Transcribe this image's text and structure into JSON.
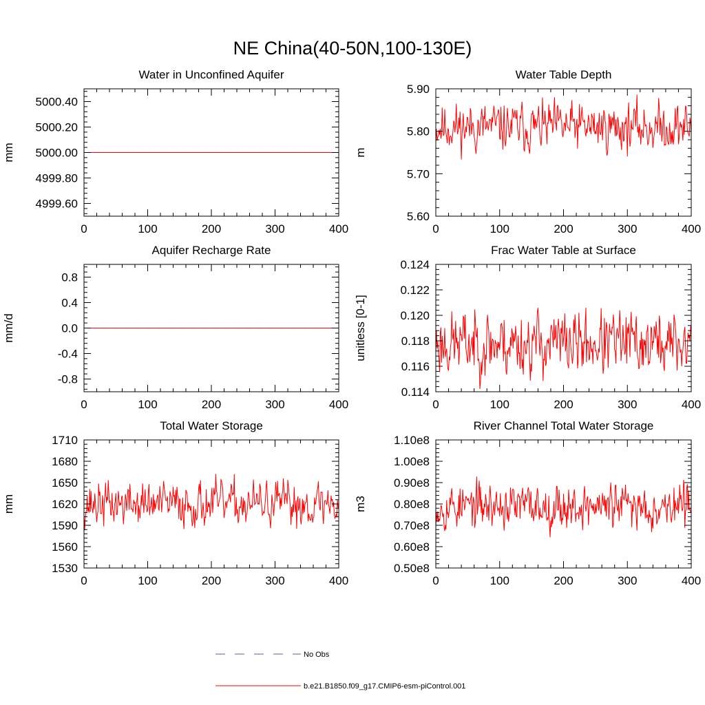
{
  "page_title": "NE China(40-50N,100-130E)",
  "colors": {
    "model": "#ff0000",
    "obs": "#5a5aa0"
  },
  "chart_data": [
    {
      "type": "line",
      "title": "Water in Unconfined Aquifer",
      "ylabel": "mm",
      "xlabel": "",
      "xlim": [
        0,
        400
      ],
      "ylim": [
        4999.5,
        5000.5
      ],
      "xticks": [
        "0",
        "100",
        "200",
        "300",
        "400"
      ],
      "yticks": [
        "4999.60",
        "4999.80",
        "5000.00",
        "5000.20",
        "5000.40"
      ],
      "yticks_values": [
        4999.6,
        4999.8,
        5000.0,
        5000.2,
        5000.4
      ],
      "series_kind": "constant",
      "series_value": 5000.0,
      "series_name": "b.e21.B1850.f09_g17.CMIP6-esm-piControl.001"
    },
    {
      "type": "line",
      "title": "Water Table Depth",
      "ylabel": "m",
      "xlabel": "",
      "xlim": [
        0,
        400
      ],
      "ylim": [
        5.6,
        5.9
      ],
      "xticks": [
        "0",
        "100",
        "200",
        "300",
        "400"
      ],
      "yticks": [
        "5.60",
        "5.70",
        "5.80",
        "5.90"
      ],
      "yticks_values": [
        5.6,
        5.7,
        5.8,
        5.9
      ],
      "series_kind": "noisy",
      "series_mean": 5.81,
      "series_amp": 0.04,
      "seed": 11,
      "series_name": "b.e21.B1850.f09_g17.CMIP6-esm-piControl.001"
    },
    {
      "type": "line",
      "title": "Aquifer Recharge Rate",
      "ylabel": "mm/d",
      "xlabel": "",
      "xlim": [
        0,
        400
      ],
      "ylim": [
        -1.0,
        1.0
      ],
      "xticks": [
        "0",
        "100",
        "200",
        "300",
        "400"
      ],
      "yticks": [
        "-0.8",
        "-0.4",
        "0.0",
        "0.4",
        "0.8"
      ],
      "yticks_values": [
        -0.8,
        -0.4,
        0.0,
        0.4,
        0.8
      ],
      "series_kind": "constant",
      "series_value": 0.0,
      "series_name": "b.e21.B1850.f09_g17.CMIP6-esm-piControl.001"
    },
    {
      "type": "line",
      "title": "Frac Water Table at Surface",
      "ylabel": "unitless [0-1]",
      "xlabel": "",
      "xlim": [
        0,
        400
      ],
      "ylim": [
        0.114,
        0.124
      ],
      "xticks": [
        "0",
        "100",
        "200",
        "300",
        "400"
      ],
      "yticks": [
        "0.114",
        "0.116",
        "0.118",
        "0.120",
        "0.122",
        "0.124"
      ],
      "yticks_values": [
        0.114,
        0.116,
        0.118,
        0.12,
        0.122,
        0.124
      ],
      "series_kind": "noisy",
      "series_mean": 0.1178,
      "series_amp": 0.0018,
      "seed": 23,
      "series_name": "b.e21.B1850.f09_g17.CMIP6-esm-piControl.001"
    },
    {
      "type": "line",
      "title": "Total Water Storage",
      "ylabel": "mm",
      "xlabel": "",
      "xlim": [
        0,
        400
      ],
      "ylim": [
        1530,
        1710
      ],
      "xticks": [
        "0",
        "100",
        "200",
        "300",
        "400"
      ],
      "yticks": [
        "1530",
        "1560",
        "1590",
        "1620",
        "1650",
        "1680",
        "1710"
      ],
      "yticks_values": [
        1530,
        1560,
        1590,
        1620,
        1650,
        1680,
        1710
      ],
      "series_kind": "noisy",
      "series_mean": 1620,
      "series_amp": 22,
      "seed": 37,
      "series_name": "b.e21.B1850.f09_g17.CMIP6-esm-piControl.001"
    },
    {
      "type": "line",
      "title": "River Channel Total Water Storage",
      "ylabel": "m3",
      "xlabel": "",
      "xlim": [
        0,
        400
      ],
      "ylim": [
        0.5,
        1.1
      ],
      "xticks": [
        "0",
        "100",
        "200",
        "300",
        "400"
      ],
      "yticks": [
        "0.50e8",
        "0.60e8",
        "0.70e8",
        "0.80e8",
        "0.90e8",
        "1.00e8",
        "1.10e8"
      ],
      "yticks_values": [
        0.5,
        0.6,
        0.7,
        0.8,
        0.9,
        1.0,
        1.1
      ],
      "series_kind": "noisy",
      "series_mean": 0.79,
      "series_amp": 0.075,
      "seed": 53,
      "series_name": "b.e21.B1850.f09_g17.CMIP6-esm-piControl.001"
    }
  ],
  "legend": {
    "obs_label": "No Obs",
    "model_label": "b.e21.B1850.f09_g17.CMIP6-esm-piControl.001"
  }
}
